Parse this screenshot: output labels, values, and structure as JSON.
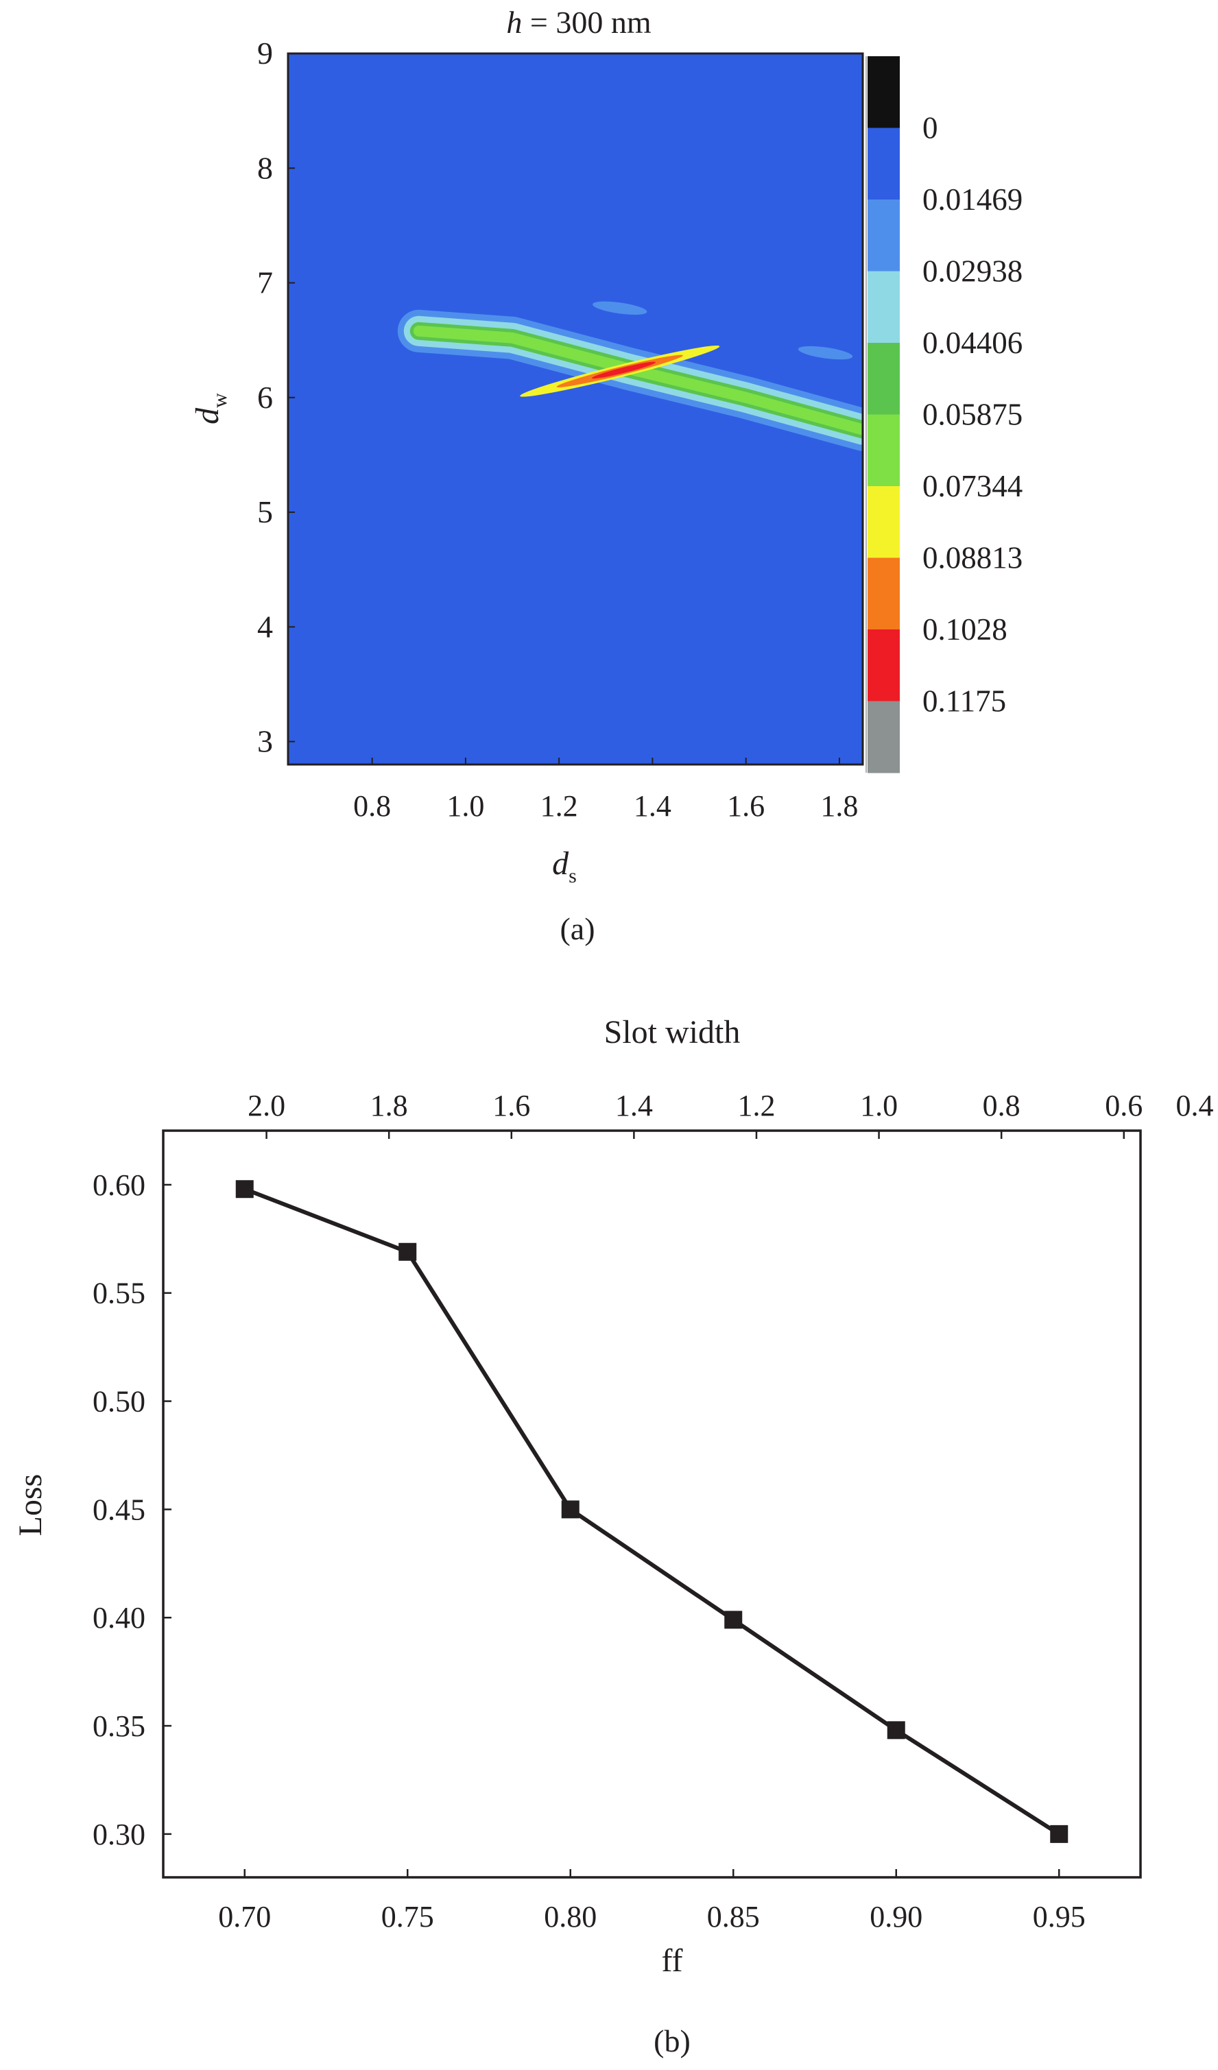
{
  "chart_data": [
    {
      "type": "heatmap",
      "title_var": "h",
      "title_rest": " = 300 nm",
      "xlabel_main": "d",
      "xlabel_sub": "s",
      "ylabel_main": "d",
      "ylabel_sub": "w",
      "panel_label": "(a)",
      "xlim": [
        0.62,
        1.85
      ],
      "ylim": [
        2.8,
        9.0
      ],
      "x_ticks": [
        0.8,
        1.0,
        1.2,
        1.4,
        1.6,
        1.8
      ],
      "x_tick_labels": [
        "0.8",
        "1.0",
        "1.2",
        "1.4",
        "1.6",
        "1.8"
      ],
      "y_ticks": [
        3,
        4,
        5,
        6,
        7,
        8,
        9
      ],
      "y_tick_labels": [
        "3",
        "4",
        "5",
        "6",
        "7",
        "8",
        "9"
      ],
      "colorbar": {
        "levels": [
          "0",
          "0.01469",
          "0.02938",
          "0.04406",
          "0.05875",
          "0.07344",
          "0.08813",
          "0.1028",
          "0.1175"
        ],
        "colors": [
          "#111111",
          "#2f5ee3",
          "#4f8fec",
          "#8fd9e4",
          "#5ac44e",
          "#7ee045",
          "#f4f32a",
          "#f57a1c",
          "#ee1c25",
          "#8c9191"
        ]
      },
      "colors": {
        "background": "#2f5ee3",
        "band_light": "#4f8fec",
        "band_cyan": "#8fd9e4",
        "band_green": "#5ac44e",
        "band_lightgreen": "#7ee045",
        "band_yellow": "#f4f32a",
        "band_orange": "#f57a1c",
        "band_red": "#ee1c25"
      },
      "features": {
        "ridge": {
          "x": [
            0.9,
            1.1,
            1.35,
            1.6,
            1.85
          ],
          "y": [
            6.58,
            6.52,
            6.25,
            6.0,
            5.72
          ],
          "peak": [
            1.33,
            6.23
          ]
        },
        "spots": [
          {
            "x": 1.33,
            "y": 6.78
          },
          {
            "x": 1.77,
            "y": 6.39
          }
        ]
      }
    },
    {
      "type": "line",
      "xlabel": "ff",
      "ylabel": "Loss",
      "top_axis_label": "Slot width",
      "panel_label": "(b)",
      "x": [
        0.7,
        0.75,
        0.8,
        0.85,
        0.9,
        0.95
      ],
      "series": [
        {
          "values": [
            0.598,
            0.569,
            0.45,
            0.399,
            0.348,
            0.3
          ]
        }
      ],
      "xlim": [
        0.675,
        0.975
      ],
      "ylim": [
        0.28,
        0.625
      ],
      "x_ticks": [
        0.7,
        0.75,
        0.8,
        0.85,
        0.9,
        0.95
      ],
      "x_tick_labels": [
        "0.70",
        "0.75",
        "0.80",
        "0.85",
        "0.90",
        "0.95"
      ],
      "y_ticks": [
        0.3,
        0.35,
        0.4,
        0.45,
        0.5,
        0.55,
        0.6
      ],
      "y_tick_labels": [
        "0.30",
        "0.35",
        "0.40",
        "0.45",
        "0.50",
        "0.55",
        "0.60"
      ],
      "top_ticks": [
        {
          "at_ff": 0.7067,
          "label": "2.0"
        },
        {
          "at_ff": 0.7443,
          "label": "1.8"
        },
        {
          "at_ff": 0.7819,
          "label": "1.6"
        },
        {
          "at_ff": 0.8195,
          "label": "1.4"
        },
        {
          "at_ff": 0.8571,
          "label": "1.2"
        },
        {
          "at_ff": 0.8947,
          "label": "1.0"
        },
        {
          "at_ff": 0.9323,
          "label": "0.8"
        },
        {
          "at_ff": 0.9699,
          "label": "0.6"
        },
        {
          "at_ff": 1.0075,
          "label": "0.4"
        }
      ],
      "line_color": "#231f20",
      "marker": "square"
    }
  ]
}
